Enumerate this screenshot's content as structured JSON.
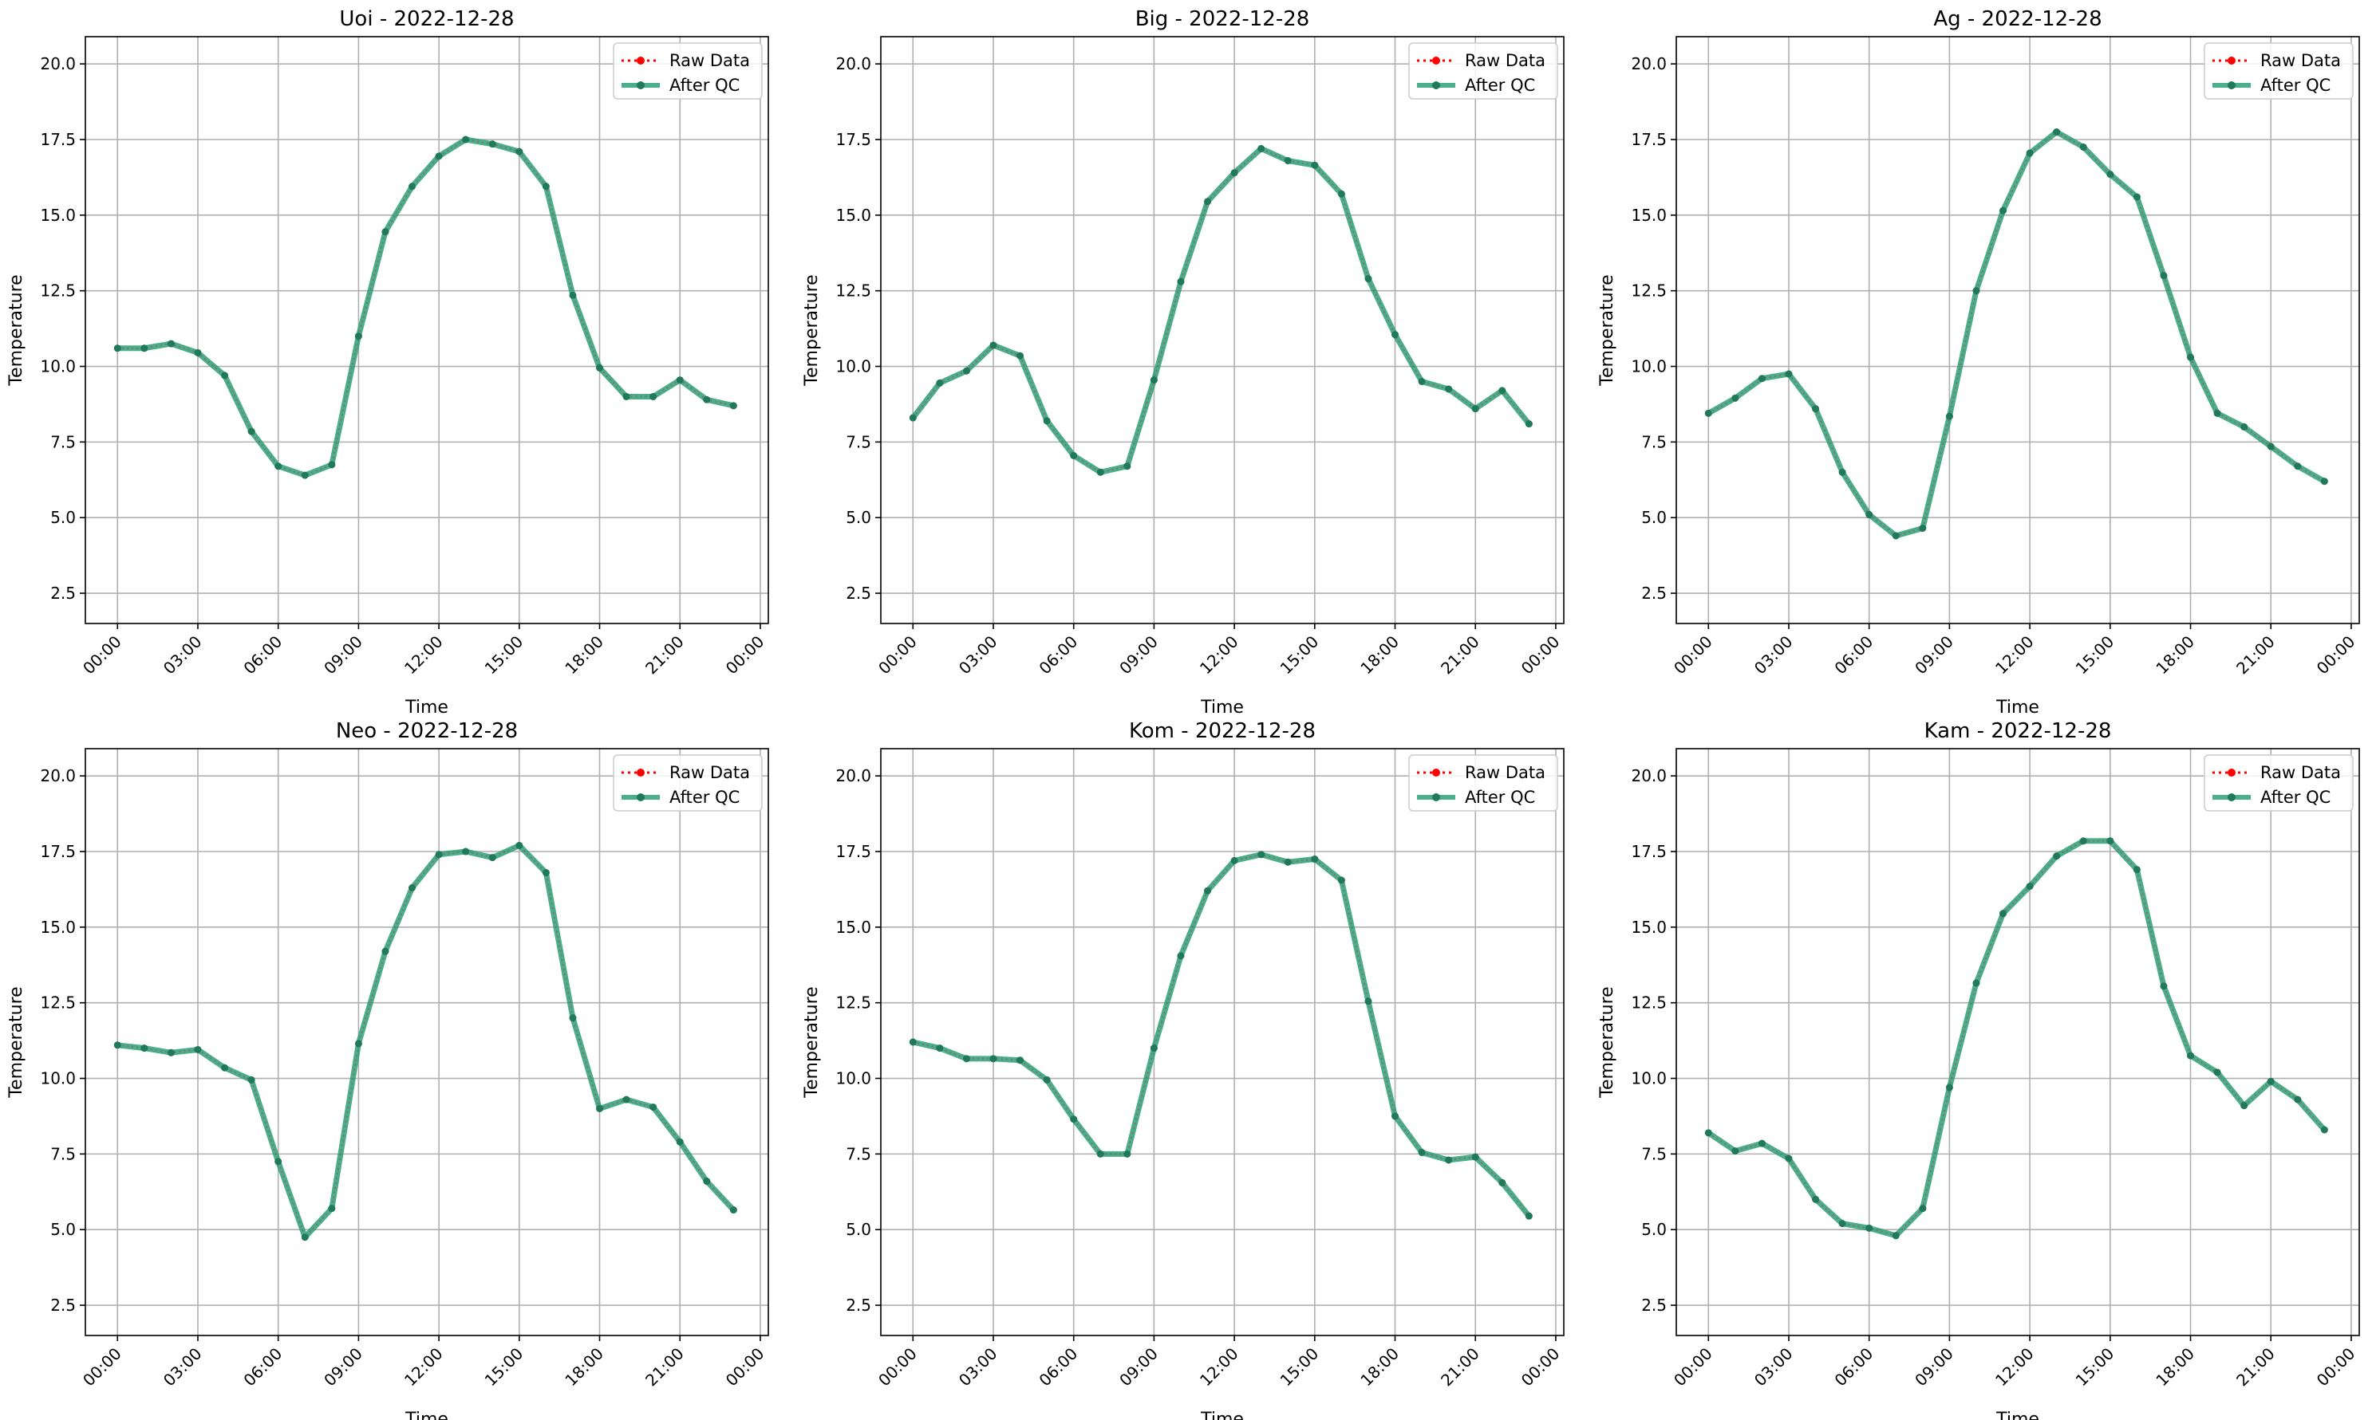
{
  "colors": {
    "raw": "#ff0000",
    "qc": "#2a9f78",
    "qc_marker": "#1f7a5c",
    "grid": "#b0b0b0",
    "axis": "#000000"
  },
  "chart_data": [
    {
      "type": "line",
      "title": "Uoi - 2022-12-28",
      "xlabel": "Time",
      "ylabel": "Temperature",
      "ylim": [
        1.5,
        20.9
      ],
      "xlim": [
        -1.2,
        24.3
      ],
      "x_tick_labels": [
        "00:00",
        "03:00",
        "06:00",
        "09:00",
        "12:00",
        "15:00",
        "18:00",
        "21:00",
        "00:00"
      ],
      "y_tick_labels": [
        "2.5",
        "5.0",
        "7.5",
        "10.0",
        "12.5",
        "15.0",
        "17.5",
        "20.0"
      ],
      "grid": true,
      "legend": "top-right",
      "x": [
        0,
        1,
        2,
        3,
        4,
        5,
        6,
        7,
        8,
        9,
        10,
        11,
        12,
        13,
        14,
        15,
        16,
        17,
        18,
        19,
        20,
        21,
        22,
        23
      ],
      "series": [
        {
          "name": "Raw Data",
          "style": "dotted",
          "values": [
            10.6,
            10.6,
            10.75,
            10.45,
            9.7,
            7.85,
            6.7,
            6.4,
            6.75,
            11.0,
            14.45,
            15.95,
            16.95,
            17.5,
            17.35,
            17.1,
            15.95,
            12.35,
            9.95,
            9.0,
            9.0,
            9.55,
            8.9,
            8.7
          ]
        },
        {
          "name": "After QC",
          "style": "solid",
          "values": [
            10.6,
            10.6,
            10.75,
            10.45,
            9.7,
            7.85,
            6.7,
            6.4,
            6.75,
            11.0,
            14.45,
            15.95,
            16.95,
            17.5,
            17.35,
            17.1,
            15.95,
            12.35,
            9.95,
            9.0,
            9.0,
            9.55,
            8.9,
            8.7
          ]
        }
      ]
    },
    {
      "type": "line",
      "title": "Big - 2022-12-28",
      "xlabel": "Time",
      "ylabel": "Temperature",
      "ylim": [
        1.5,
        20.9
      ],
      "xlim": [
        -1.2,
        24.3
      ],
      "x_tick_labels": [
        "00:00",
        "03:00",
        "06:00",
        "09:00",
        "12:00",
        "15:00",
        "18:00",
        "21:00",
        "00:00"
      ],
      "y_tick_labels": [
        "2.5",
        "5.0",
        "7.5",
        "10.0",
        "12.5",
        "15.0",
        "17.5",
        "20.0"
      ],
      "grid": true,
      "legend": "top-right",
      "x": [
        0,
        1,
        2,
        3,
        4,
        5,
        6,
        7,
        8,
        9,
        10,
        11,
        12,
        13,
        14,
        15,
        16,
        17,
        18,
        19,
        20,
        21,
        22,
        23
      ],
      "series": [
        {
          "name": "Raw Data",
          "style": "dotted",
          "values": [
            8.3,
            9.45,
            9.85,
            10.7,
            10.35,
            8.2,
            7.05,
            6.5,
            6.7,
            9.55,
            12.8,
            15.45,
            16.4,
            17.2,
            16.8,
            16.65,
            15.7,
            12.9,
            11.05,
            9.5,
            9.25,
            8.6,
            9.2,
            8.1
          ]
        },
        {
          "name": "After QC",
          "style": "solid",
          "values": [
            8.3,
            9.45,
            9.85,
            10.7,
            10.35,
            8.2,
            7.05,
            6.5,
            6.7,
            9.55,
            12.8,
            15.45,
            16.4,
            17.2,
            16.8,
            16.65,
            15.7,
            12.9,
            11.05,
            9.5,
            9.25,
            8.6,
            9.2,
            8.1
          ]
        }
      ]
    },
    {
      "type": "line",
      "title": "Ag - 2022-12-28",
      "xlabel": "Time",
      "ylabel": "Temperature",
      "ylim": [
        1.5,
        20.9
      ],
      "xlim": [
        -1.2,
        24.3
      ],
      "x_tick_labels": [
        "00:00",
        "03:00",
        "06:00",
        "09:00",
        "12:00",
        "15:00",
        "18:00",
        "21:00",
        "00:00"
      ],
      "y_tick_labels": [
        "2.5",
        "5.0",
        "7.5",
        "10.0",
        "12.5",
        "15.0",
        "17.5",
        "20.0"
      ],
      "grid": true,
      "legend": "top-right",
      "x": [
        0,
        1,
        2,
        3,
        4,
        5,
        6,
        7,
        8,
        9,
        10,
        11,
        12,
        13,
        14,
        15,
        16,
        17,
        18,
        19,
        20,
        21,
        22,
        23
      ],
      "series": [
        {
          "name": "Raw Data",
          "style": "dotted",
          "values": [
            8.45,
            8.95,
            9.6,
            9.75,
            8.6,
            6.5,
            5.1,
            4.4,
            4.65,
            8.35,
            12.5,
            15.15,
            17.05,
            17.75,
            17.25,
            16.35,
            15.6,
            13.0,
            10.3,
            8.45,
            8.0,
            7.35,
            6.7,
            6.2
          ]
        },
        {
          "name": "After QC",
          "style": "solid",
          "values": [
            8.45,
            8.95,
            9.6,
            9.75,
            8.6,
            6.5,
            5.1,
            4.4,
            4.65,
            8.35,
            12.5,
            15.15,
            17.05,
            17.75,
            17.25,
            16.35,
            15.6,
            13.0,
            10.3,
            8.45,
            8.0,
            7.35,
            6.7,
            6.2
          ]
        }
      ]
    },
    {
      "type": "line",
      "title": "Neo - 2022-12-28",
      "xlabel": "Time",
      "ylabel": "Temperature",
      "ylim": [
        1.5,
        20.9
      ],
      "xlim": [
        -1.2,
        24.3
      ],
      "x_tick_labels": [
        "00:00",
        "03:00",
        "06:00",
        "09:00",
        "12:00",
        "15:00",
        "18:00",
        "21:00",
        "00:00"
      ],
      "y_tick_labels": [
        "2.5",
        "5.0",
        "7.5",
        "10.0",
        "12.5",
        "15.0",
        "17.5",
        "20.0"
      ],
      "grid": true,
      "legend": "top-right",
      "x": [
        0,
        1,
        2,
        3,
        4,
        5,
        6,
        7,
        8,
        9,
        10,
        11,
        12,
        13,
        14,
        15,
        16,
        17,
        18,
        19,
        20,
        21,
        22,
        23
      ],
      "series": [
        {
          "name": "Raw Data",
          "style": "dotted",
          "values": [
            11.1,
            11.0,
            10.85,
            10.95,
            10.35,
            9.95,
            7.25,
            4.75,
            5.7,
            11.15,
            14.2,
            16.3,
            17.4,
            17.5,
            17.3,
            17.7,
            16.8,
            12.0,
            9.0,
            9.3,
            9.05,
            7.9,
            6.6,
            5.65
          ]
        },
        {
          "name": "After QC",
          "style": "solid",
          "values": [
            11.1,
            11.0,
            10.85,
            10.95,
            10.35,
            9.95,
            7.25,
            4.75,
            5.7,
            11.15,
            14.2,
            16.3,
            17.4,
            17.5,
            17.3,
            17.7,
            16.8,
            12.0,
            9.0,
            9.3,
            9.05,
            7.9,
            6.6,
            5.65
          ]
        }
      ]
    },
    {
      "type": "line",
      "title": "Kom - 2022-12-28",
      "xlabel": "Time",
      "ylabel": "Temperature",
      "ylim": [
        1.5,
        20.9
      ],
      "xlim": [
        -1.2,
        24.3
      ],
      "x_tick_labels": [
        "00:00",
        "03:00",
        "06:00",
        "09:00",
        "12:00",
        "15:00",
        "18:00",
        "21:00",
        "00:00"
      ],
      "y_tick_labels": [
        "2.5",
        "5.0",
        "7.5",
        "10.0",
        "12.5",
        "15.0",
        "17.5",
        "20.0"
      ],
      "grid": true,
      "legend": "top-right",
      "x": [
        0,
        1,
        2,
        3,
        4,
        5,
        6,
        7,
        8,
        9,
        10,
        11,
        12,
        13,
        14,
        15,
        16,
        17,
        18,
        19,
        20,
        21,
        22,
        23
      ],
      "series": [
        {
          "name": "Raw Data",
          "style": "dotted",
          "values": [
            11.2,
            11.0,
            10.65,
            10.65,
            10.6,
            9.95,
            8.65,
            7.5,
            7.5,
            11.0,
            14.05,
            16.2,
            17.2,
            17.4,
            17.15,
            17.25,
            16.55,
            12.55,
            8.75,
            7.55,
            7.3,
            7.4,
            6.55,
            5.45
          ]
        },
        {
          "name": "After QC",
          "style": "solid",
          "values": [
            11.2,
            11.0,
            10.65,
            10.65,
            10.6,
            9.95,
            8.65,
            7.5,
            7.5,
            11.0,
            14.05,
            16.2,
            17.2,
            17.4,
            17.15,
            17.25,
            16.55,
            12.55,
            8.75,
            7.55,
            7.3,
            7.4,
            6.55,
            5.45
          ]
        }
      ]
    },
    {
      "type": "line",
      "title": "Kam - 2022-12-28",
      "xlabel": "Time",
      "ylabel": "Temperature",
      "ylim": [
        1.5,
        20.9
      ],
      "xlim": [
        -1.2,
        24.3
      ],
      "x_tick_labels": [
        "00:00",
        "03:00",
        "06:00",
        "09:00",
        "12:00",
        "15:00",
        "18:00",
        "21:00",
        "00:00"
      ],
      "y_tick_labels": [
        "2.5",
        "5.0",
        "7.5",
        "10.0",
        "12.5",
        "15.0",
        "17.5",
        "20.0"
      ],
      "grid": true,
      "legend": "top-right",
      "x": [
        0,
        1,
        2,
        3,
        4,
        5,
        6,
        7,
        8,
        9,
        10,
        11,
        12,
        13,
        14,
        15,
        16,
        17,
        18,
        19,
        20,
        21,
        22,
        23
      ],
      "series": [
        {
          "name": "Raw Data",
          "style": "dotted",
          "values": [
            8.2,
            7.6,
            7.85,
            7.35,
            6.0,
            5.2,
            5.05,
            4.8,
            5.7,
            9.7,
            13.15,
            15.45,
            16.35,
            17.35,
            17.85,
            17.85,
            16.9,
            13.05,
            10.75,
            10.2,
            9.1,
            9.9,
            9.3,
            8.3
          ]
        },
        {
          "name": "After QC",
          "style": "solid",
          "values": [
            8.2,
            7.6,
            7.85,
            7.35,
            6.0,
            5.2,
            5.05,
            4.8,
            5.7,
            9.7,
            13.15,
            15.45,
            16.35,
            17.35,
            17.85,
            17.85,
            16.9,
            13.05,
            10.75,
            10.2,
            9.1,
            9.9,
            9.3,
            8.3
          ]
        }
      ]
    }
  ]
}
